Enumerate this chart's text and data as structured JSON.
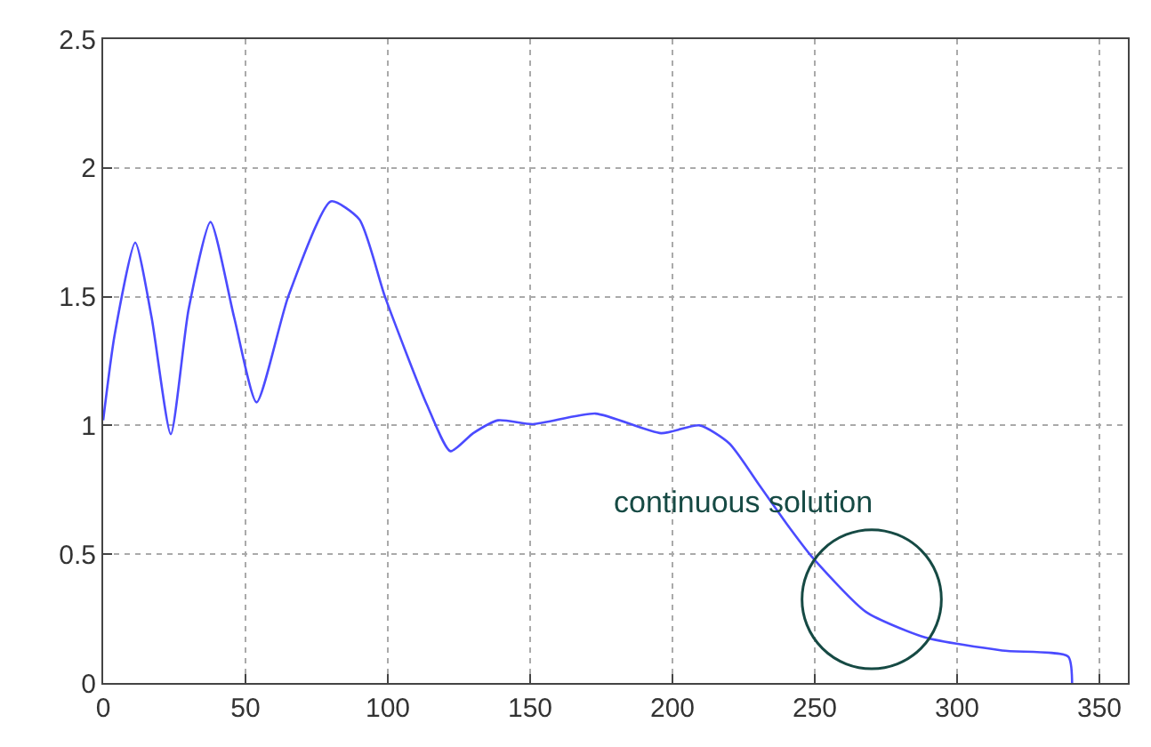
{
  "chart_data": {
    "type": "line",
    "x": [
      0,
      4,
      11.25,
      17,
      23.75,
      30,
      37.7,
      46,
      53.9,
      65,
      80,
      90,
      99,
      113.75,
      122,
      130,
      138.75,
      151,
      173,
      196,
      209.6,
      220,
      230.4,
      240,
      249,
      268,
      288.75,
      315.8,
      339,
      340.4
    ],
    "series": [
      {
        "color": "#4b4bff",
        "values": [
          1.02,
          1.35,
          1.71,
          1.42,
          0.966,
          1.45,
          1.79,
          1.42,
          1.09,
          1.5,
          1.87,
          1.8,
          1.5,
          1.08,
          0.9,
          0.97,
          1.02,
          1.005,
          1.046,
          0.97,
          1.0,
          0.93,
          0.77,
          0.62,
          0.49,
          0.276,
          0.177,
          0.126,
          0.103,
          0
        ]
      }
    ],
    "xlim": [
      0,
      360
    ],
    "ylim": [
      0,
      2.5
    ],
    "xticks": [
      0,
      50,
      100,
      150,
      200,
      250,
      300,
      350
    ],
    "yticks": [
      0,
      0.5,
      1,
      1.5,
      2,
      2.5
    ],
    "grid": true,
    "marker": "none",
    "line_style": "solid",
    "annotations": [
      "continuous solution"
    ]
  }
}
